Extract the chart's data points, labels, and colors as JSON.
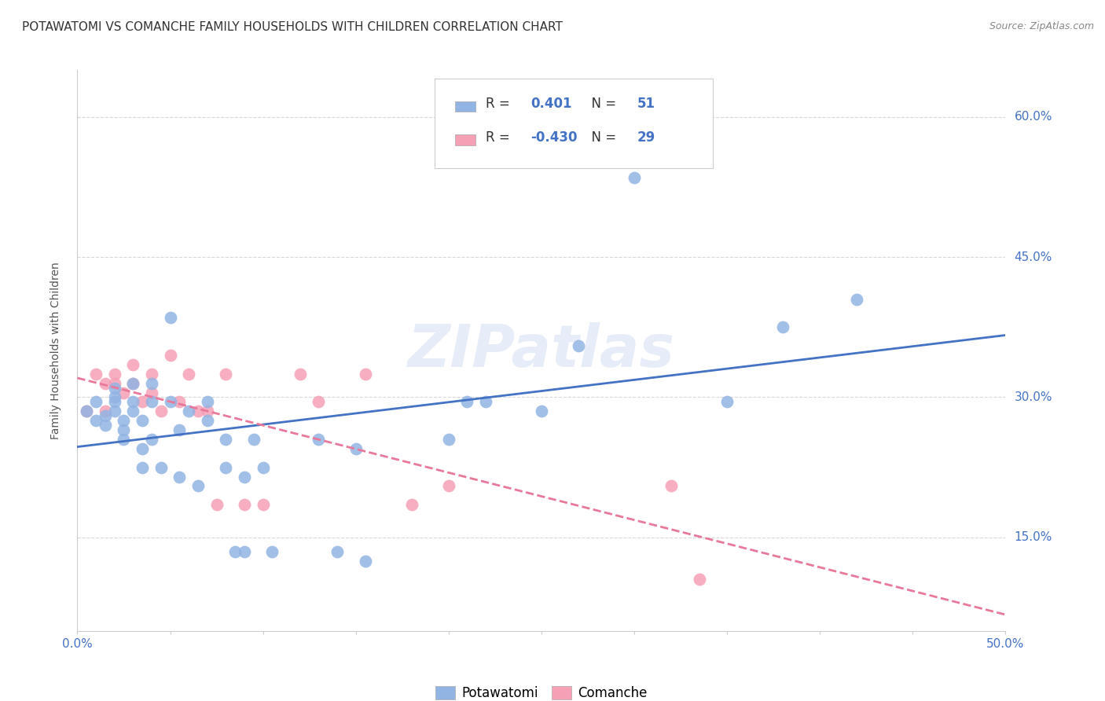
{
  "title": "POTAWATOMI VS COMANCHE FAMILY HOUSEHOLDS WITH CHILDREN CORRELATION CHART",
  "source": "Source: ZipAtlas.com",
  "ylabel": "Family Households with Children",
  "xlim": [
    0.0,
    0.5
  ],
  "ylim": [
    0.05,
    0.65
  ],
  "y_ticks": [
    0.15,
    0.3,
    0.45,
    0.6
  ],
  "y_tick_labels": [
    "15.0%",
    "30.0%",
    "45.0%",
    "60.0%"
  ],
  "background_color": "#ffffff",
  "grid_color": "#d8d8d8",
  "watermark": "ZIPatlas",
  "blue_color": "#92b4e3",
  "pink_color": "#f5a0b5",
  "blue_line_color": "#4472c4",
  "pink_line_color": "#e8799a",
  "R_blue": "0.401",
  "N_blue": "51",
  "R_pink": "-0.430",
  "N_pink": "29",
  "tick_color": "#4472c4",
  "title_color": "#333333",
  "source_color": "#888888",
  "ylabel_color": "#555555",
  "potawatomi_x": [
    0.005,
    0.01,
    0.01,
    0.015,
    0.015,
    0.02,
    0.02,
    0.02,
    0.02,
    0.025,
    0.025,
    0.025,
    0.03,
    0.03,
    0.03,
    0.035,
    0.035,
    0.035,
    0.04,
    0.04,
    0.04,
    0.045,
    0.05,
    0.05,
    0.055,
    0.055,
    0.06,
    0.065,
    0.07,
    0.07,
    0.08,
    0.08,
    0.085,
    0.09,
    0.09,
    0.095,
    0.1,
    0.105,
    0.13,
    0.14,
    0.15,
    0.155,
    0.2,
    0.21,
    0.22,
    0.25,
    0.27,
    0.3,
    0.35,
    0.38,
    0.42
  ],
  "potawatomi_y": [
    0.285,
    0.295,
    0.275,
    0.28,
    0.27,
    0.31,
    0.3,
    0.295,
    0.285,
    0.275,
    0.265,
    0.255,
    0.315,
    0.295,
    0.285,
    0.275,
    0.245,
    0.225,
    0.315,
    0.295,
    0.255,
    0.225,
    0.385,
    0.295,
    0.265,
    0.215,
    0.285,
    0.205,
    0.295,
    0.275,
    0.255,
    0.225,
    0.135,
    0.135,
    0.215,
    0.255,
    0.225,
    0.135,
    0.255,
    0.135,
    0.245,
    0.125,
    0.255,
    0.295,
    0.295,
    0.285,
    0.355,
    0.535,
    0.295,
    0.375,
    0.405
  ],
  "comanche_x": [
    0.005,
    0.01,
    0.015,
    0.015,
    0.02,
    0.02,
    0.025,
    0.03,
    0.03,
    0.035,
    0.04,
    0.04,
    0.045,
    0.05,
    0.055,
    0.06,
    0.065,
    0.07,
    0.075,
    0.08,
    0.09,
    0.1,
    0.12,
    0.13,
    0.155,
    0.18,
    0.2,
    0.32,
    0.335
  ],
  "comanche_y": [
    0.285,
    0.325,
    0.315,
    0.285,
    0.325,
    0.315,
    0.305,
    0.335,
    0.315,
    0.295,
    0.325,
    0.305,
    0.285,
    0.345,
    0.295,
    0.325,
    0.285,
    0.285,
    0.185,
    0.325,
    0.185,
    0.185,
    0.325,
    0.295,
    0.325,
    0.185,
    0.205,
    0.205,
    0.105
  ],
  "title_fontsize": 11,
  "axis_fontsize": 10,
  "tick_fontsize": 11,
  "legend_fontsize": 12
}
